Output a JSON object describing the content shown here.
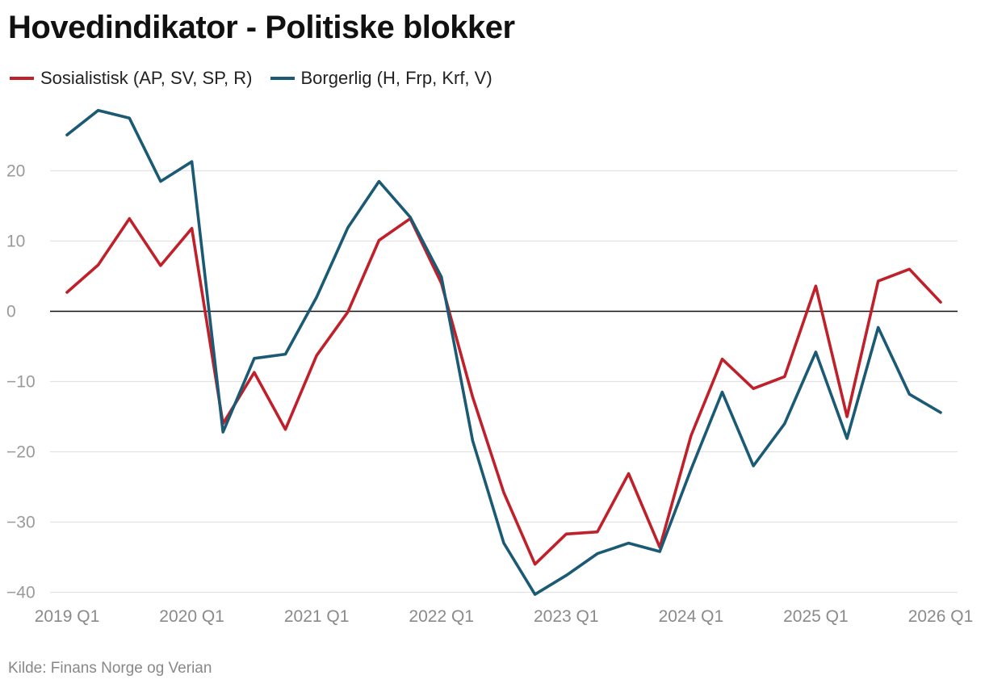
{
  "chart_data": {
    "type": "line",
    "title": "Hovedindikator - Politiske blokker",
    "source": "Kilde: Finans Norge og Verian",
    "x": [
      "2019 Q1",
      "2019 Q2",
      "2019 Q3",
      "2019 Q4",
      "2020 Q1",
      "2020 Q2",
      "2020 Q3",
      "2020 Q4",
      "2021 Q1",
      "2021 Q2",
      "2021 Q3",
      "2021 Q4",
      "2022 Q1",
      "2022 Q2",
      "2022 Q3",
      "2022 Q4",
      "2023 Q1",
      "2023 Q2",
      "2023 Q3",
      "2023 Q4",
      "2024 Q1",
      "2024 Q2",
      "2024 Q3",
      "2024 Q4",
      "2025 Q1",
      "2025 Q2",
      "2025 Q3",
      "2025 Q4",
      "2026 Q1"
    ],
    "xticks": [
      "2019 Q1",
      "2020 Q1",
      "2021 Q1",
      "2022 Q1",
      "2023 Q1",
      "2024 Q1",
      "2025 Q1",
      "2026 Q1"
    ],
    "yticks": [
      20,
      10,
      0,
      -10,
      -20,
      -30,
      -40
    ],
    "ytick_labels": [
      "20",
      "10",
      "0",
      "−10",
      "−20",
      "−30",
      "−40"
    ],
    "ylim": [
      -40.5,
      29
    ],
    "grid": true,
    "legend_position": "top-left",
    "series": [
      {
        "name": "Sosialistisk (AP, SV, SP, R)",
        "color": "#c0202a",
        "values": [
          2.7,
          6.6,
          13.2,
          6.5,
          11.8,
          -16.0,
          -8.7,
          -16.8,
          -6.3,
          -0.1,
          10.1,
          13.2,
          4.0,
          -12.2,
          -25.8,
          -36.0,
          -31.7,
          -31.4,
          -23.1,
          -33.6,
          -17.7,
          -6.8,
          -11.0,
          -9.3,
          3.6,
          -15.0,
          4.3,
          6.0,
          1.3
        ]
      },
      {
        "name": "Borgerlig (H, Frp, Krf, V)",
        "color": "#1b5a74",
        "values": [
          25.1,
          28.6,
          27.5,
          18.5,
          21.3,
          -17.2,
          -6.7,
          -6.1,
          2.0,
          11.9,
          18.5,
          13.4,
          4.9,
          -18.4,
          -33.0,
          -40.3,
          -37.6,
          -34.5,
          -33.0,
          -34.2,
          -22.5,
          -11.5,
          -22.0,
          -16.0,
          -5.8,
          -18.1,
          -2.3,
          -11.8,
          -14.4
        ]
      }
    ]
  }
}
